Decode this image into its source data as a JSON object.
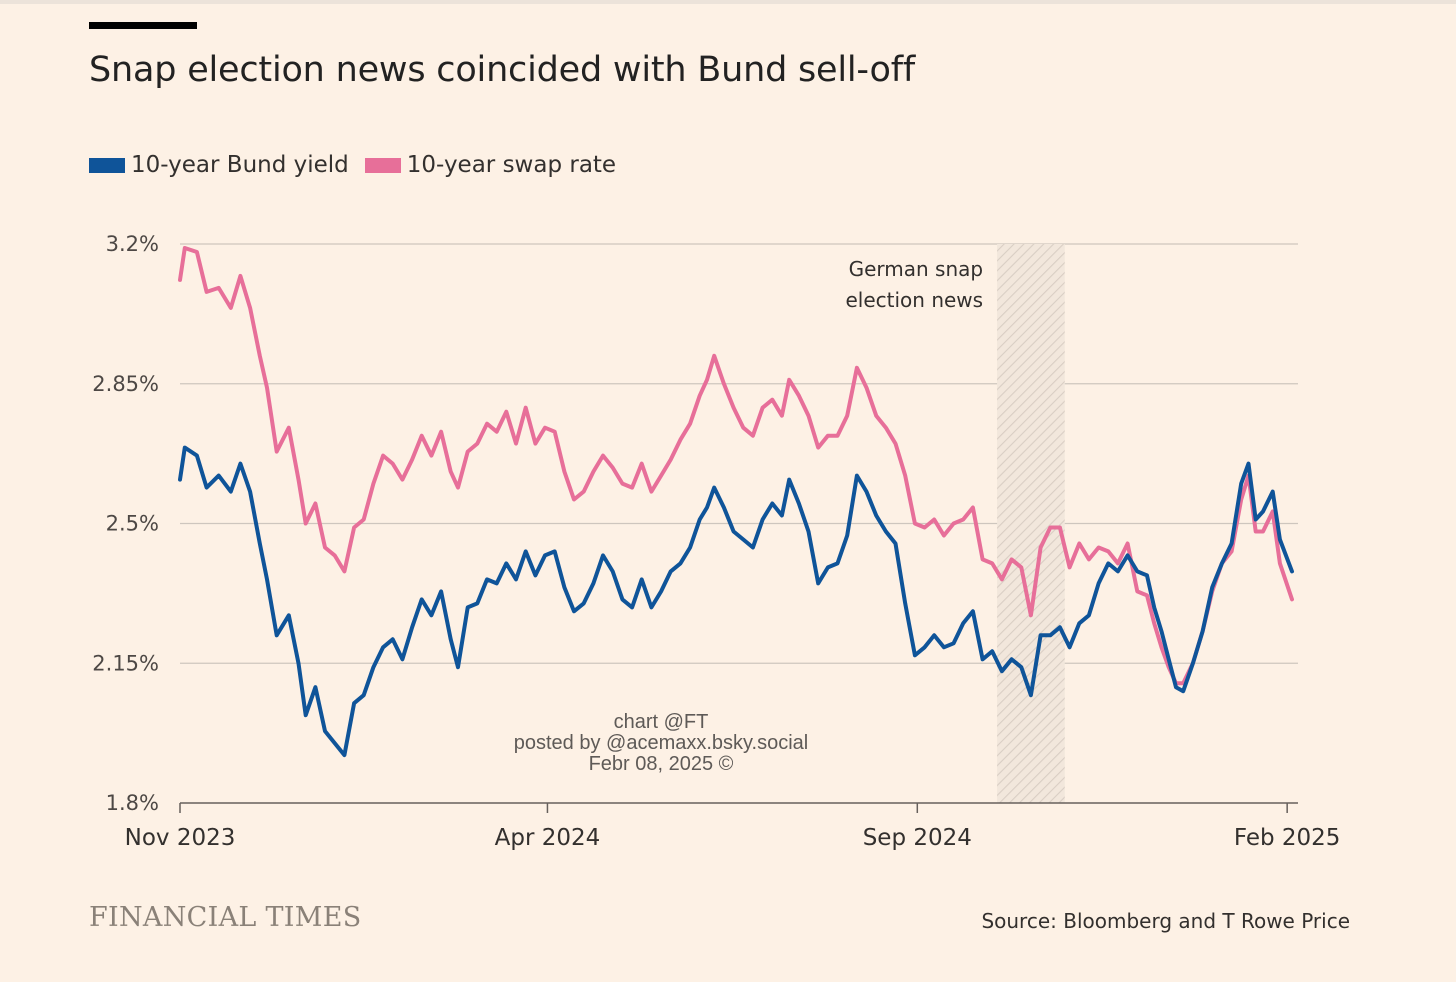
{
  "title": "Snap election news coincided with Bund sell-off",
  "legend": [
    {
      "label": "10-year Bund yield",
      "color": "#0f5499"
    },
    {
      "label": "10-year swap rate",
      "color": "#e76f99"
    }
  ],
  "footer": {
    "brand": "FINANCIAL TIMES",
    "source": "Source: Bloomberg and T Rowe Price"
  },
  "watermark": [
    "chart @FT",
    "posted by @acemaxx.bsky.social",
    "Febr 08, 2025 ©"
  ],
  "chart_data": {
    "type": "line",
    "title": "Snap election news coincided with Bund sell-off",
    "ylim": [
      1.8,
      3.2
    ],
    "yticks": [
      1.8,
      2.15,
      2.5,
      2.85,
      3.2
    ],
    "ytick_labels": [
      "1.8%",
      "2.15%",
      "2.5%",
      "2.85%",
      "3.2%"
    ],
    "xlim": [
      "2023-11-01",
      "2025-02-03"
    ],
    "xticks": [
      "2023-11-01",
      "2024-04-01",
      "2024-09-01",
      "2025-02-01"
    ],
    "xtick_labels": [
      "Nov 2023",
      "Apr 2024",
      "Sep 2024",
      "Feb 2025"
    ],
    "grid": true,
    "legend_position": "top-left",
    "highlight": {
      "from": "2024-10-04",
      "to": "2024-11-01",
      "label": [
        "German snap",
        "election news"
      ]
    },
    "series": [
      {
        "name": "10-year Bund yield",
        "color": "#0f5499",
        "points": [
          [
            "2023-11-01",
            2.61
          ],
          [
            "2023-11-03",
            2.69
          ],
          [
            "2023-11-08",
            2.67
          ],
          [
            "2023-11-12",
            2.59
          ],
          [
            "2023-11-17",
            2.62
          ],
          [
            "2023-11-22",
            2.58
          ],
          [
            "2023-11-26",
            2.65
          ],
          [
            "2023-11-30",
            2.58
          ],
          [
            "2023-12-04",
            2.45
          ],
          [
            "2023-12-07",
            2.36
          ],
          [
            "2023-12-11",
            2.22
          ],
          [
            "2023-12-16",
            2.27
          ],
          [
            "2023-12-20",
            2.15
          ],
          [
            "2023-12-23",
            2.02
          ],
          [
            "2023-12-27",
            2.09
          ],
          [
            "2023-12-31",
            1.98
          ],
          [
            "2024-01-04",
            1.95
          ],
          [
            "2024-01-08",
            1.92
          ],
          [
            "2024-01-12",
            2.05
          ],
          [
            "2024-01-16",
            2.07
          ],
          [
            "2024-01-20",
            2.14
          ],
          [
            "2024-01-24",
            2.19
          ],
          [
            "2024-01-28",
            2.21
          ],
          [
            "2024-02-01",
            2.16
          ],
          [
            "2024-02-05",
            2.24
          ],
          [
            "2024-02-09",
            2.31
          ],
          [
            "2024-02-13",
            2.27
          ],
          [
            "2024-02-17",
            2.33
          ],
          [
            "2024-02-21",
            2.21
          ],
          [
            "2024-02-24",
            2.14
          ],
          [
            "2024-02-28",
            2.29
          ],
          [
            "2024-03-03",
            2.3
          ],
          [
            "2024-03-07",
            2.36
          ],
          [
            "2024-03-11",
            2.35
          ],
          [
            "2024-03-15",
            2.4
          ],
          [
            "2024-03-19",
            2.36
          ],
          [
            "2024-03-23",
            2.43
          ],
          [
            "2024-03-27",
            2.37
          ],
          [
            "2024-03-31",
            2.42
          ],
          [
            "2024-04-04",
            2.43
          ],
          [
            "2024-04-08",
            2.34
          ],
          [
            "2024-04-12",
            2.28
          ],
          [
            "2024-04-16",
            2.3
          ],
          [
            "2024-04-20",
            2.35
          ],
          [
            "2024-04-24",
            2.42
          ],
          [
            "2024-04-28",
            2.38
          ],
          [
            "2024-05-02",
            2.31
          ],
          [
            "2024-05-06",
            2.29
          ],
          [
            "2024-05-10",
            2.36
          ],
          [
            "2024-05-14",
            2.29
          ],
          [
            "2024-05-18",
            2.33
          ],
          [
            "2024-05-22",
            2.38
          ],
          [
            "2024-05-26",
            2.4
          ],
          [
            "2024-05-30",
            2.44
          ],
          [
            "2024-06-03",
            2.51
          ],
          [
            "2024-06-06",
            2.54
          ],
          [
            "2024-06-09",
            2.59
          ],
          [
            "2024-06-13",
            2.54
          ],
          [
            "2024-06-17",
            2.48
          ],
          [
            "2024-06-21",
            2.46
          ],
          [
            "2024-06-25",
            2.44
          ],
          [
            "2024-06-29",
            2.51
          ],
          [
            "2024-07-03",
            2.55
          ],
          [
            "2024-07-07",
            2.52
          ],
          [
            "2024-07-10",
            2.61
          ],
          [
            "2024-07-14",
            2.55
          ],
          [
            "2024-07-18",
            2.48
          ],
          [
            "2024-07-22",
            2.35
          ],
          [
            "2024-07-26",
            2.39
          ],
          [
            "2024-07-30",
            2.4
          ],
          [
            "2024-08-03",
            2.47
          ],
          [
            "2024-08-07",
            2.62
          ],
          [
            "2024-08-11",
            2.58
          ],
          [
            "2024-08-15",
            2.52
          ],
          [
            "2024-08-19",
            2.48
          ],
          [
            "2024-08-23",
            2.45
          ],
          [
            "2024-08-27",
            2.3
          ],
          [
            "2024-08-31",
            2.17
          ],
          [
            "2024-09-04",
            2.19
          ],
          [
            "2024-09-08",
            2.22
          ],
          [
            "2024-09-12",
            2.19
          ],
          [
            "2024-09-16",
            2.2
          ],
          [
            "2024-09-20",
            2.25
          ],
          [
            "2024-09-24",
            2.28
          ],
          [
            "2024-09-28",
            2.16
          ],
          [
            "2024-10-02",
            2.18
          ],
          [
            "2024-10-06",
            2.13
          ],
          [
            "2024-10-10",
            2.16
          ],
          [
            "2024-10-14",
            2.14
          ],
          [
            "2024-10-18",
            2.07
          ],
          [
            "2024-10-22",
            2.22
          ],
          [
            "2024-10-26",
            2.22
          ],
          [
            "2024-10-30",
            2.24
          ],
          [
            "2024-11-03",
            2.19
          ],
          [
            "2024-11-07",
            2.25
          ],
          [
            "2024-11-11",
            2.27
          ],
          [
            "2024-11-15",
            2.35
          ],
          [
            "2024-11-19",
            2.4
          ],
          [
            "2024-11-23",
            2.38
          ],
          [
            "2024-11-27",
            2.42
          ],
          [
            "2024-12-01",
            2.38
          ],
          [
            "2024-12-05",
            2.37
          ],
          [
            "2024-12-08",
            2.29
          ],
          [
            "2024-12-11",
            2.23
          ],
          [
            "2024-12-14",
            2.16
          ],
          [
            "2024-12-17",
            2.09
          ],
          [
            "2024-12-20",
            2.08
          ],
          [
            "2024-12-24",
            2.15
          ],
          [
            "2024-12-28",
            2.23
          ],
          [
            "2025-01-01",
            2.34
          ],
          [
            "2025-01-05",
            2.4
          ],
          [
            "2025-01-09",
            2.45
          ],
          [
            "2025-01-13",
            2.6
          ],
          [
            "2025-01-16",
            2.65
          ],
          [
            "2025-01-19",
            2.51
          ],
          [
            "2025-01-22",
            2.53
          ],
          [
            "2025-01-26",
            2.58
          ],
          [
            "2025-01-29",
            2.46
          ],
          [
            "2025-02-03",
            2.38
          ]
        ]
      },
      {
        "name": "10-year swap rate",
        "color": "#e76f99",
        "points": [
          [
            "2023-11-01",
            3.11
          ],
          [
            "2023-11-03",
            3.19
          ],
          [
            "2023-11-08",
            3.18
          ],
          [
            "2023-11-12",
            3.08
          ],
          [
            "2023-11-17",
            3.09
          ],
          [
            "2023-11-22",
            3.04
          ],
          [
            "2023-11-26",
            3.12
          ],
          [
            "2023-11-30",
            3.04
          ],
          [
            "2023-12-04",
            2.92
          ],
          [
            "2023-12-07",
            2.84
          ],
          [
            "2023-12-11",
            2.68
          ],
          [
            "2023-12-16",
            2.74
          ],
          [
            "2023-12-20",
            2.61
          ],
          [
            "2023-12-23",
            2.5
          ],
          [
            "2023-12-27",
            2.55
          ],
          [
            "2023-12-31",
            2.44
          ],
          [
            "2024-01-04",
            2.42
          ],
          [
            "2024-01-08",
            2.38
          ],
          [
            "2024-01-12",
            2.49
          ],
          [
            "2024-01-16",
            2.51
          ],
          [
            "2024-01-20",
            2.6
          ],
          [
            "2024-01-24",
            2.67
          ],
          [
            "2024-01-28",
            2.65
          ],
          [
            "2024-02-01",
            2.61
          ],
          [
            "2024-02-05",
            2.66
          ],
          [
            "2024-02-09",
            2.72
          ],
          [
            "2024-02-13",
            2.67
          ],
          [
            "2024-02-17",
            2.73
          ],
          [
            "2024-02-21",
            2.63
          ],
          [
            "2024-02-24",
            2.59
          ],
          [
            "2024-02-28",
            2.68
          ],
          [
            "2024-03-03",
            2.7
          ],
          [
            "2024-03-07",
            2.75
          ],
          [
            "2024-03-11",
            2.73
          ],
          [
            "2024-03-15",
            2.78
          ],
          [
            "2024-03-19",
            2.7
          ],
          [
            "2024-03-23",
            2.79
          ],
          [
            "2024-03-27",
            2.7
          ],
          [
            "2024-03-31",
            2.74
          ],
          [
            "2024-04-04",
            2.73
          ],
          [
            "2024-04-08",
            2.63
          ],
          [
            "2024-04-12",
            2.56
          ],
          [
            "2024-04-16",
            2.58
          ],
          [
            "2024-04-20",
            2.63
          ],
          [
            "2024-04-24",
            2.67
          ],
          [
            "2024-04-28",
            2.64
          ],
          [
            "2024-05-02",
            2.6
          ],
          [
            "2024-05-06",
            2.59
          ],
          [
            "2024-05-10",
            2.65
          ],
          [
            "2024-05-14",
            2.58
          ],
          [
            "2024-05-18",
            2.62
          ],
          [
            "2024-05-22",
            2.66
          ],
          [
            "2024-05-26",
            2.71
          ],
          [
            "2024-05-30",
            2.75
          ],
          [
            "2024-06-03",
            2.82
          ],
          [
            "2024-06-06",
            2.86
          ],
          [
            "2024-06-09",
            2.92
          ],
          [
            "2024-06-13",
            2.85
          ],
          [
            "2024-06-17",
            2.79
          ],
          [
            "2024-06-21",
            2.74
          ],
          [
            "2024-06-25",
            2.72
          ],
          [
            "2024-06-29",
            2.79
          ],
          [
            "2024-07-03",
            2.81
          ],
          [
            "2024-07-07",
            2.77
          ],
          [
            "2024-07-10",
            2.86
          ],
          [
            "2024-07-14",
            2.82
          ],
          [
            "2024-07-18",
            2.77
          ],
          [
            "2024-07-22",
            2.69
          ],
          [
            "2024-07-26",
            2.72
          ],
          [
            "2024-07-30",
            2.72
          ],
          [
            "2024-08-03",
            2.77
          ],
          [
            "2024-08-07",
            2.89
          ],
          [
            "2024-08-11",
            2.84
          ],
          [
            "2024-08-15",
            2.77
          ],
          [
            "2024-08-19",
            2.74
          ],
          [
            "2024-08-23",
            2.7
          ],
          [
            "2024-08-27",
            2.62
          ],
          [
            "2024-08-31",
            2.5
          ],
          [
            "2024-09-04",
            2.49
          ],
          [
            "2024-09-08",
            2.51
          ],
          [
            "2024-09-12",
            2.47
          ],
          [
            "2024-09-16",
            2.5
          ],
          [
            "2024-09-20",
            2.51
          ],
          [
            "2024-09-24",
            2.54
          ],
          [
            "2024-09-28",
            2.41
          ],
          [
            "2024-10-02",
            2.4
          ],
          [
            "2024-10-06",
            2.36
          ],
          [
            "2024-10-10",
            2.41
          ],
          [
            "2024-10-14",
            2.39
          ],
          [
            "2024-10-18",
            2.27
          ],
          [
            "2024-10-22",
            2.44
          ],
          [
            "2024-10-26",
            2.49
          ],
          [
            "2024-10-30",
            2.49
          ],
          [
            "2024-11-03",
            2.39
          ],
          [
            "2024-11-07",
            2.45
          ],
          [
            "2024-11-11",
            2.41
          ],
          [
            "2024-11-15",
            2.44
          ],
          [
            "2024-11-19",
            2.43
          ],
          [
            "2024-11-23",
            2.4
          ],
          [
            "2024-11-27",
            2.45
          ],
          [
            "2024-12-01",
            2.33
          ],
          [
            "2024-12-05",
            2.32
          ],
          [
            "2024-12-08",
            2.25
          ],
          [
            "2024-12-11",
            2.19
          ],
          [
            "2024-12-14",
            2.14
          ],
          [
            "2024-12-17",
            2.1
          ],
          [
            "2024-12-20",
            2.1
          ],
          [
            "2024-12-24",
            2.15
          ],
          [
            "2024-12-28",
            2.23
          ],
          [
            "2025-01-01",
            2.33
          ],
          [
            "2025-01-05",
            2.4
          ],
          [
            "2025-01-09",
            2.43
          ],
          [
            "2025-01-13",
            2.56
          ],
          [
            "2025-01-16",
            2.62
          ],
          [
            "2025-01-19",
            2.48
          ],
          [
            "2025-01-22",
            2.48
          ],
          [
            "2025-01-26",
            2.53
          ],
          [
            "2025-01-29",
            2.4
          ],
          [
            "2025-02-03",
            2.31
          ]
        ]
      }
    ]
  }
}
